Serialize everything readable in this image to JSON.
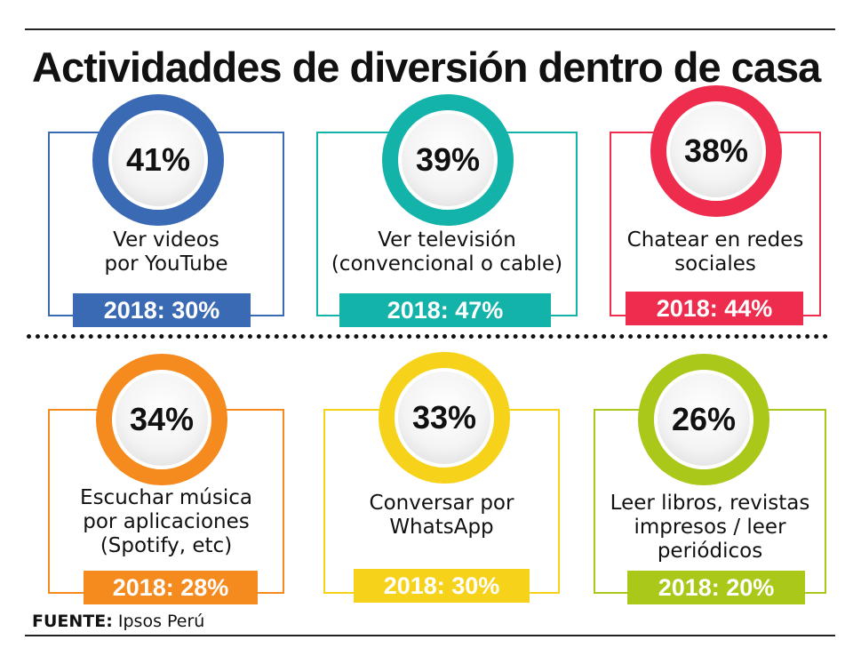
{
  "title": "Actividaddes de diversión dentro de casa",
  "source_label": "FUENTE:",
  "source_value": "Ipsos Perú",
  "chart_data": {
    "type": "table",
    "title": "Actividaddes de diversión dentro de casa",
    "items": [
      {
        "pct": "41%",
        "value": 41,
        "label": "Ver videos\npor YouTube",
        "prev": "2018: 30%",
        "prev_value": 30,
        "color": "#3a6ab3"
      },
      {
        "pct": "39%",
        "value": 39,
        "label": "Ver televisión\n(convencional o cable)",
        "prev": "2018: 47%",
        "prev_value": 47,
        "color": "#14b3aa"
      },
      {
        "pct": "38%",
        "value": 38,
        "label": "Chatear en redes\nsociales",
        "prev": "2018: 44%",
        "prev_value": 44,
        "color": "#ee2d4e"
      },
      {
        "pct": "34%",
        "value": 34,
        "label": "Escuchar música\npor aplicaciones\n(Spotify, etc)",
        "prev": "2018: 28%",
        "prev_value": 28,
        "color": "#f58a1e"
      },
      {
        "pct": "33%",
        "value": 33,
        "label": "Conversar por\nWhatsApp",
        "prev": "2018: 30%",
        "prev_value": 30,
        "color": "#f7d21b"
      },
      {
        "pct": "26%",
        "value": 26,
        "label": "Leer libros, revistas\nimpresos / leer\nperiódicos",
        "prev": "2018: 20%",
        "prev_value": 20,
        "color": "#a9c81a"
      }
    ]
  }
}
